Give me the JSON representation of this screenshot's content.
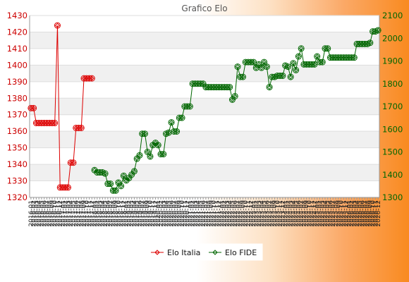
{
  "chart_data": {
    "type": "line",
    "title": "Grafico Elo",
    "xlabel": "",
    "ylabel_left": "",
    "ylabel_right": "",
    "ylim_left": [
      1320,
      1430
    ],
    "ylim_right": [
      1300,
      2100
    ],
    "yticks_left": [
      1320,
      1330,
      1340,
      1350,
      1360,
      1370,
      1380,
      1390,
      1400,
      1410,
      1420,
      1430
    ],
    "yticks_right": [
      1300,
      1400,
      1500,
      1600,
      1700,
      1800,
      1900,
      2000,
      2100
    ],
    "grid": true,
    "legend_position": "bottom",
    "n_x": 132,
    "x_tick_labels": [
      "2016-01",
      "2016-02",
      "2016-03",
      "2016-04",
      "2016-05",
      "2016-06",
      "2016-07",
      "2016-08",
      "2016-09",
      "2016-10",
      "2016-11",
      "2016-12",
      "2017-01",
      "2017-02",
      "2017-03",
      "2017-04",
      "2017-05",
      "2017-06",
      "2017-07",
      "2017-08",
      "2017-09",
      "2017-10",
      "2017-11",
      "2017-12",
      "2018-01",
      "2018-02",
      "2018-03",
      "2018-04",
      "2018-05",
      "2018-06",
      "2018-07",
      "2018-08",
      "2018-09",
      "2018-10",
      "2018-11",
      "2018-12",
      "2019-01",
      "2019-02",
      "2019-03",
      "2019-04",
      "2019-05",
      "2019-06",
      "2019-07",
      "2019-08",
      "2019-09",
      "2019-10",
      "2019-11",
      "2019-12",
      "2020-01",
      "2020-02",
      "2020-03",
      "2020-04",
      "2020-05",
      "2020-06",
      "2020-07",
      "2020-08",
      "2020-09",
      "2020-10",
      "2020-11",
      "2020-12",
      "2021-01",
      "2021-02",
      "2021-03",
      "2021-04",
      "2021-05",
      "2021-06",
      "2021-07",
      "2021-08",
      "2021-09",
      "2021-10",
      "2021-11",
      "2021-12",
      "2022-01",
      "2022-02",
      "2022-03",
      "2022-04",
      "2022-05",
      "2022-06",
      "2022-07",
      "2022-08",
      "2022-09",
      "2022-10",
      "2022-11",
      "2022-12",
      "2023-01",
      "2023-02",
      "2023-03",
      "2023-04",
      "2023-05",
      "2023-06",
      "2023-07",
      "2023-08",
      "2023-09",
      "2023-10",
      "2023-11",
      "2023-12",
      "2024-01",
      "2024-02",
      "2024-03",
      "2024-04",
      "2024-05",
      "2024-06",
      "2024-07",
      "2024-08",
      "2024-09",
      "2024-10",
      "2024-11",
      "2024-12",
      "2025-01",
      "2025-02",
      "2025-03",
      "2025-04",
      "2025-05",
      "2025-06",
      "2025-07",
      "2025-08",
      "2025-09",
      "2025-10",
      "2025-11",
      "2025-12",
      "2026-01",
      "2026-02",
      "2026-03",
      "2026-04",
      "2026-05",
      "2026-06",
      "2026-07",
      "2026-08",
      "2026-09",
      "2026-10",
      "2026-11",
      "2026-12"
    ],
    "series": [
      {
        "name": "Elo Italia",
        "axis": "left",
        "color": "#dd0000",
        "marker": "diamond",
        "points": [
          [
            0,
            1374
          ],
          [
            1,
            1374
          ],
          [
            2,
            1365
          ],
          [
            3,
            1365
          ],
          [
            4,
            1365
          ],
          [
            5,
            1365
          ],
          [
            6,
            1365
          ],
          [
            7,
            1365
          ],
          [
            8,
            1365
          ],
          [
            9,
            1365
          ],
          [
            10,
            1424
          ],
          [
            11,
            1326
          ],
          [
            12,
            1326
          ],
          [
            13,
            1326
          ],
          [
            14,
            1326
          ],
          [
            15,
            1341
          ],
          [
            16,
            1341
          ],
          [
            17,
            1362
          ],
          [
            18,
            1362
          ],
          [
            19,
            1362
          ],
          [
            20,
            1392
          ],
          [
            21,
            1392
          ],
          [
            22,
            1392
          ],
          [
            23,
            1392
          ]
        ]
      },
      {
        "name": "Elo FIDE",
        "axis": "right",
        "color": "#006600",
        "marker": "circle",
        "points": [
          [
            24,
            1420
          ],
          [
            25,
            1410
          ],
          [
            26,
            1410
          ],
          [
            27,
            1410
          ],
          [
            28,
            1405
          ],
          [
            29,
            1360
          ],
          [
            30,
            1360
          ],
          [
            31,
            1330
          ],
          [
            32,
            1330
          ],
          [
            33,
            1365
          ],
          [
            34,
            1350
          ],
          [
            35,
            1395
          ],
          [
            36,
            1375
          ],
          [
            37,
            1385
          ],
          [
            38,
            1400
          ],
          [
            39,
            1415
          ],
          [
            40,
            1470
          ],
          [
            41,
            1485
          ],
          [
            42,
            1580
          ],
          [
            43,
            1580
          ],
          [
            44,
            1500
          ],
          [
            45,
            1480
          ],
          [
            46,
            1530
          ],
          [
            47,
            1540
          ],
          [
            48,
            1530
          ],
          [
            49,
            1490
          ],
          [
            50,
            1490
          ],
          [
            51,
            1580
          ],
          [
            52,
            1585
          ],
          [
            53,
            1630
          ],
          [
            54,
            1590
          ],
          [
            55,
            1590
          ],
          [
            56,
            1650
          ],
          [
            57,
            1650
          ],
          [
            58,
            1700
          ],
          [
            59,
            1700
          ],
          [
            60,
            1700
          ],
          [
            61,
            1800
          ],
          [
            62,
            1800
          ],
          [
            63,
            1800
          ],
          [
            64,
            1800
          ],
          [
            65,
            1800
          ],
          [
            66,
            1785
          ],
          [
            67,
            1785
          ],
          [
            68,
            1785
          ],
          [
            69,
            1785
          ],
          [
            70,
            1785
          ],
          [
            71,
            1785
          ],
          [
            72,
            1785
          ],
          [
            73,
            1785
          ],
          [
            74,
            1785
          ],
          [
            75,
            1785
          ],
          [
            76,
            1730
          ],
          [
            77,
            1745
          ],
          [
            78,
            1875
          ],
          [
            79,
            1830
          ],
          [
            80,
            1830
          ],
          [
            81,
            1895
          ],
          [
            82,
            1895
          ],
          [
            83,
            1895
          ],
          [
            84,
            1895
          ],
          [
            85,
            1870
          ],
          [
            86,
            1885
          ],
          [
            87,
            1870
          ],
          [
            88,
            1895
          ],
          [
            89,
            1875
          ],
          [
            90,
            1785
          ],
          [
            91,
            1830
          ],
          [
            92,
            1830
          ],
          [
            93,
            1835
          ],
          [
            94,
            1835
          ],
          [
            95,
            1835
          ],
          [
            96,
            1880
          ],
          [
            97,
            1875
          ],
          [
            98,
            1830
          ],
          [
            99,
            1890
          ],
          [
            100,
            1860
          ],
          [
            101,
            1920
          ],
          [
            102,
            1955
          ],
          [
            103,
            1885
          ],
          [
            104,
            1885
          ],
          [
            105,
            1885
          ],
          [
            106,
            1885
          ],
          [
            107,
            1885
          ],
          [
            108,
            1920
          ],
          [
            109,
            1895
          ],
          [
            110,
            1895
          ],
          [
            111,
            1955
          ],
          [
            112,
            1955
          ],
          [
            113,
            1915
          ],
          [
            114,
            1915
          ],
          [
            115,
            1915
          ],
          [
            116,
            1915
          ],
          [
            117,
            1915
          ],
          [
            118,
            1915
          ],
          [
            119,
            1915
          ],
          [
            120,
            1915
          ],
          [
            121,
            1915
          ],
          [
            122,
            1915
          ],
          [
            123,
            1975
          ],
          [
            124,
            1975
          ],
          [
            125,
            1975
          ],
          [
            126,
            1975
          ],
          [
            127,
            1975
          ],
          [
            128,
            1980
          ],
          [
            129,
            2030
          ],
          [
            130,
            2030
          ],
          [
            131,
            2035
          ]
        ]
      }
    ]
  }
}
